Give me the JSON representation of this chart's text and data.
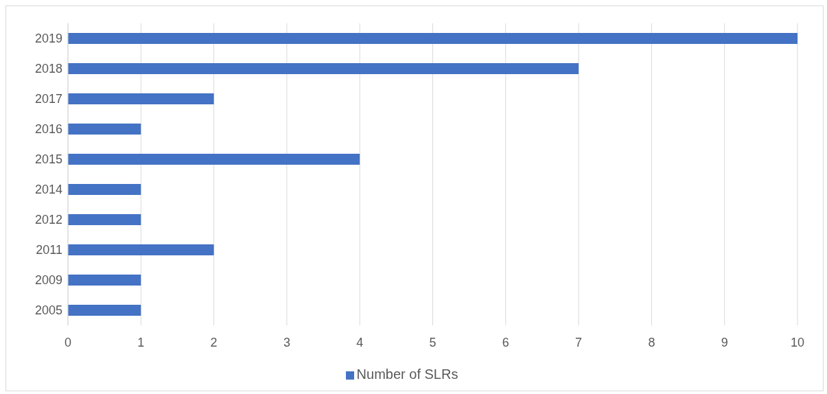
{
  "chart_data": {
    "type": "bar",
    "orientation": "horizontal",
    "categories": [
      "2019",
      "2018",
      "2017",
      "2016",
      "2015",
      "2014",
      "2012",
      "2011",
      "2009",
      "2005"
    ],
    "series": [
      {
        "name": "Number of SLRs",
        "color": "#4472c4",
        "values": [
          10,
          7,
          2,
          1,
          4,
          1,
          1,
          2,
          1,
          1
        ]
      }
    ],
    "xlim": [
      0,
      10
    ],
    "xticks": [
      0,
      1,
      2,
      3,
      4,
      5,
      6,
      7,
      8,
      9,
      10
    ],
    "grid": "x",
    "legend": "bottom"
  }
}
